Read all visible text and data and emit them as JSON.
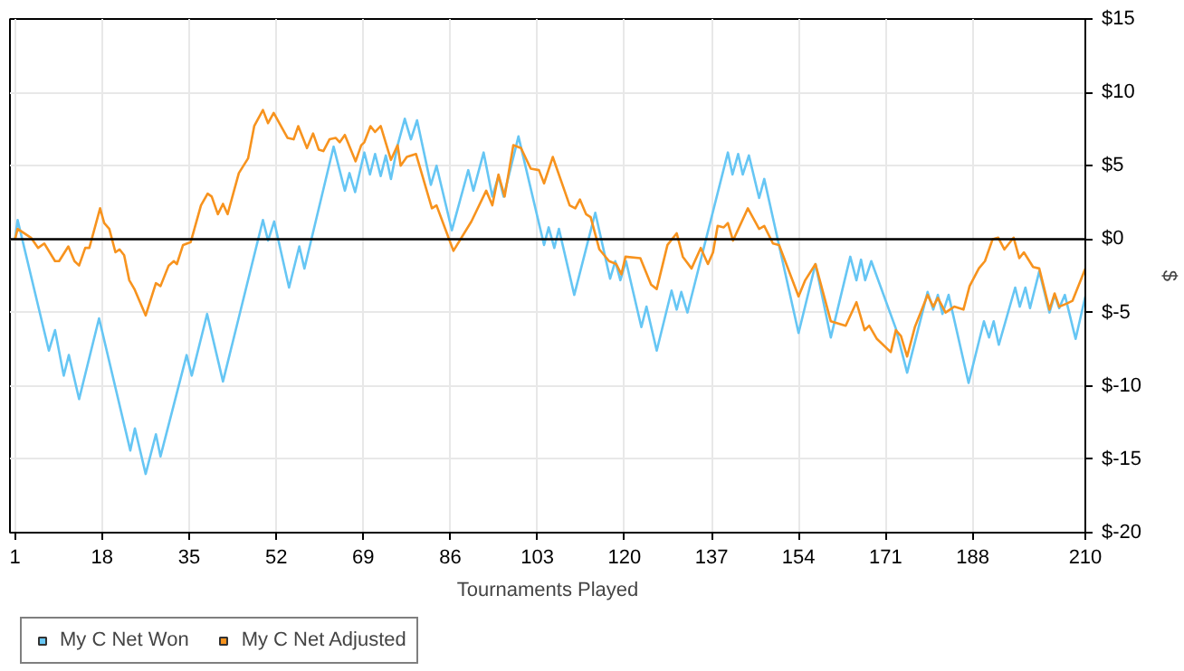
{
  "chart_data": {
    "type": "line",
    "xlabel": "Tournaments Played",
    "ylabel": "$",
    "xlim": [
      0,
      210
    ],
    "xticks": [
      1,
      18,
      35,
      52,
      69,
      86,
      103,
      120,
      137,
      154,
      171,
      188,
      210
    ],
    "ylim": [
      -20,
      15
    ],
    "yticks": [
      {
        "value": 15,
        "label": "$15"
      },
      {
        "value": 10,
        "label": "$10"
      },
      {
        "value": 5,
        "label": "$5"
      },
      {
        "value": 0,
        "label": "$0"
      },
      {
        "value": -5,
        "label": "$-5"
      },
      {
        "value": -10,
        "label": "$-10"
      },
      {
        "value": -15,
        "label": "$-15"
      },
      {
        "value": -20,
        "label": "$-20"
      }
    ],
    "grid": true,
    "legend": "bottom left",
    "marker": "none",
    "line_style": "solid",
    "ref_lines": [
      {
        "axis": "y",
        "value": 0,
        "color": "#000000"
      }
    ],
    "series": [
      {
        "name": "My C Net Won",
        "color": "#66c6f4",
        "x": [
          1,
          1.5,
          7.6,
          8.8,
          10.5,
          11.5,
          13.5,
          17.4,
          23.5,
          24.4,
          26.5,
          28.5,
          29.4,
          34.5,
          35.5,
          38.5,
          41.6,
          49.4,
          50.4,
          51.6,
          54.5,
          56.5,
          57.5,
          63.2,
          65.4,
          66.3,
          67.4,
          69.2,
          70.3,
          71.3,
          72.4,
          73.4,
          74.4,
          75.7,
          77.1,
          78.3,
          79.5,
          82.2,
          83.3,
          86.3,
          89.5,
          90.5,
          92.5,
          94.2,
          95.4,
          96.4,
          99.3,
          104.3,
          105.2,
          106.3,
          107.2,
          110.2,
          114.3,
          117.2,
          118.2,
          119.2,
          120.3,
          123.3,
          124.3,
          126.3,
          129.2,
          130.2,
          131.1,
          132.3,
          140.2,
          141.1,
          142.2,
          143.1,
          144.3,
          146.3,
          147.3,
          154.0,
          157.3,
          160.3,
          164.1,
          165.3,
          166.2,
          167.0,
          168.2,
          173.0,
          175.2,
          179.2,
          180.3,
          181.2,
          182.1,
          183.3,
          187.2,
          190.2,
          191.2,
          192.1,
          193.1,
          196.3,
          197.2,
          198.3,
          199.2,
          201.0,
          203.0,
          204.0,
          204.9,
          206.0,
          208.1,
          210
        ],
        "values": [
          0,
          1.3,
          -7.6,
          -6.2,
          -9.3,
          -7.9,
          -10.9,
          -5.4,
          -14.4,
          -12.9,
          -16.0,
          -13.3,
          -14.8,
          -7.9,
          -9.3,
          -5.1,
          -9.7,
          1.3,
          -0.1,
          1.2,
          -3.3,
          -0.5,
          -2.0,
          6.3,
          3.3,
          4.5,
          3.2,
          5.9,
          4.4,
          5.8,
          4.3,
          5.7,
          4.1,
          6.4,
          8.2,
          6.8,
          8.1,
          3.7,
          5.0,
          0.6,
          4.7,
          3.3,
          5.9,
          2.9,
          4.3,
          2.9,
          7.0,
          -0.4,
          0.8,
          -0.6,
          0.7,
          -3.8,
          1.8,
          -2.7,
          -1.5,
          -2.8,
          -1.5,
          -6.0,
          -4.6,
          -7.6,
          -3.5,
          -4.8,
          -3.6,
          -5.0,
          5.9,
          4.4,
          5.8,
          4.4,
          5.7,
          2.8,
          4.1,
          -6.4,
          -1.7,
          -6.7,
          -1.2,
          -2.8,
          -1.4,
          -2.8,
          -1.5,
          -6.1,
          -9.1,
          -3.6,
          -4.8,
          -3.8,
          -5.1,
          -3.8,
          -9.8,
          -5.6,
          -6.7,
          -5.6,
          -7.2,
          -3.3,
          -4.6,
          -3.3,
          -4.7,
          -2.2,
          -5.0,
          -3.8,
          -4.7,
          -3.8,
          -6.8,
          -3.9
        ]
      },
      {
        "name": "My C Net Adjusted",
        "color": "#f7931e",
        "x": [
          1,
          1.5,
          4.1,
          5.5,
          6.7,
          8.8,
          9.6,
          11.4,
          12.6,
          13.5,
          14.7,
          15.5,
          17.6,
          18.4,
          19.4,
          20.6,
          21.4,
          22.3,
          23.3,
          24.3,
          26.5,
          28.5,
          29.4,
          31.0,
          32.0,
          32.6,
          33.8,
          35.3,
          37.3,
          38.6,
          39.4,
          40.6,
          41.6,
          42.5,
          44.7,
          46.5,
          47.7,
          49.4,
          50.4,
          51.5,
          54.2,
          55.4,
          56.3,
          58.0,
          59.2,
          60.3,
          61.2,
          62.4,
          63.6,
          64.4,
          65.4,
          67.5,
          68.6,
          69.2,
          70.4,
          71.3,
          72.4,
          74.4,
          75.7,
          76.3,
          77.5,
          79.3,
          82.4,
          83.3,
          86.6,
          90.1,
          93.0,
          94.2,
          95.4,
          96.6,
          98.3,
          99.8,
          101.7,
          103.3,
          104.3,
          106.0,
          109.3,
          110.4,
          111.3,
          112.5,
          113.4,
          115.1,
          117.0,
          118.4,
          119.4,
          120.2,
          123.1,
          125.2,
          126.3,
          128.4,
          130.2,
          131.4,
          133.1,
          134.9,
          136.3,
          137.3,
          138.2,
          139.4,
          140.2,
          141.2,
          144.1,
          146.3,
          147.3,
          149.0,
          150.2,
          154.0,
          155.3,
          157.3,
          160.3,
          163.2,
          165.3,
          166.9,
          167.8,
          169.3,
          172.0,
          173.0,
          174.0,
          175.2,
          176.7,
          179.2,
          180.3,
          181.2,
          182.7,
          184.4,
          186.2,
          187.4,
          189.2,
          190.4,
          191.9,
          193.0,
          194.2,
          196.0,
          197.1,
          198.0,
          199.8,
          201.0,
          203.0,
          204.0,
          204.9,
          206.3,
          207.5,
          210
        ],
        "values": [
          0,
          0.7,
          0.1,
          -0.6,
          -0.3,
          -1.5,
          -1.5,
          -0.5,
          -1.5,
          -1.8,
          -0.6,
          -0.6,
          2.1,
          1.1,
          0.7,
          -0.9,
          -0.7,
          -1.1,
          -2.8,
          -3.4,
          -5.2,
          -3.0,
          -3.2,
          -1.8,
          -1.5,
          -1.7,
          -0.4,
          -0.2,
          2.3,
          3.1,
          2.9,
          1.7,
          2.4,
          1.7,
          4.5,
          5.5,
          7.7,
          8.8,
          7.9,
          8.6,
          6.9,
          6.8,
          7.7,
          6.2,
          7.2,
          6.1,
          6.0,
          6.8,
          6.9,
          6.6,
          7.1,
          5.3,
          6.4,
          6.6,
          7.7,
          7.3,
          7.7,
          5.4,
          6.4,
          5.0,
          5.6,
          5.8,
          2.1,
          2.3,
          -0.8,
          1.2,
          3.3,
          2.3,
          4.4,
          2.9,
          6.4,
          6.2,
          4.8,
          4.7,
          3.8,
          5.6,
          2.3,
          2.1,
          2.7,
          1.7,
          1.5,
          -0.7,
          -1.5,
          -1.7,
          -2.4,
          -1.2,
          -1.3,
          -3.1,
          -3.4,
          -0.4,
          0.4,
          -1.2,
          -2.0,
          -0.6,
          -1.7,
          -0.9,
          0.9,
          0.8,
          1.1,
          -0.1,
          2.1,
          0.7,
          0.9,
          -0.3,
          -0.4,
          -3.9,
          -2.8,
          -1.7,
          -5.6,
          -5.9,
          -4.3,
          -6.2,
          -5.9,
          -6.8,
          -7.7,
          -6.2,
          -6.6,
          -8.0,
          -6.0,
          -3.8,
          -4.6,
          -4.0,
          -5.0,
          -4.6,
          -4.8,
          -3.2,
          -2.0,
          -1.5,
          0.0,
          0.1,
          -0.7,
          0.1,
          -1.3,
          -0.9,
          -1.9,
          -2.0,
          -4.8,
          -3.7,
          -4.6,
          -4.4,
          -4.2,
          -2.0
        ]
      }
    ]
  }
}
